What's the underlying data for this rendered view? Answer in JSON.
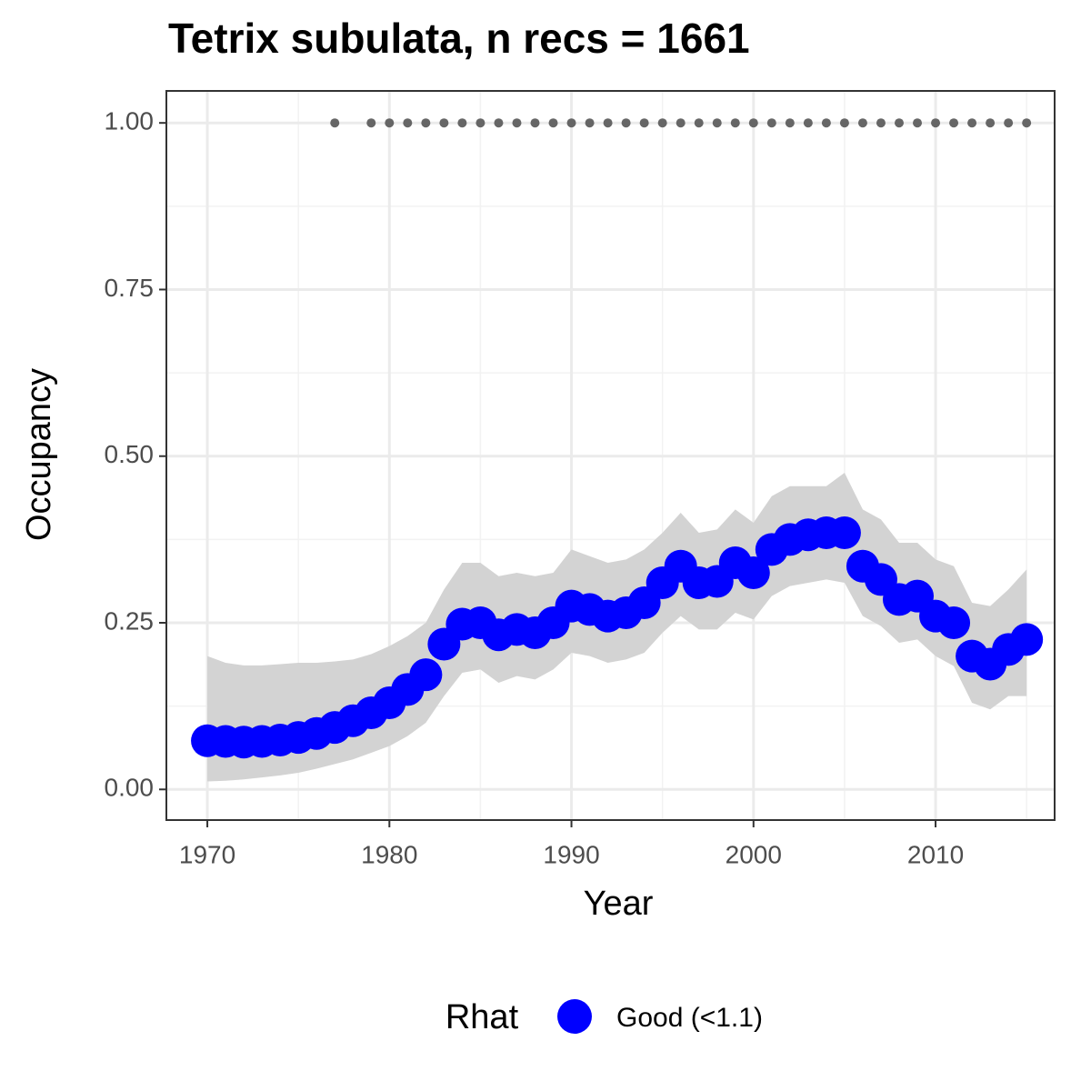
{
  "chart_data": {
    "type": "scatter",
    "title": "Tetrix subulata, n recs = 1661",
    "x_label": "Year",
    "y_label": "Occupancy",
    "legend_title": "Rhat",
    "x": [
      1970,
      1971,
      1972,
      1973,
      1974,
      1975,
      1976,
      1977,
      1978,
      1979,
      1980,
      1981,
      1982,
      1983,
      1984,
      1985,
      1986,
      1987,
      1988,
      1989,
      1990,
      1991,
      1992,
      1993,
      1994,
      1995,
      1996,
      1997,
      1998,
      1999,
      2000,
      2001,
      2002,
      2003,
      2004,
      2005,
      2006,
      2007,
      2008,
      2009,
      2010,
      2011,
      2012,
      2013,
      2014,
      2015
    ],
    "series": [
      {
        "name": "Good (<1.1)",
        "color": "#0000ff",
        "values": [
          0.073,
          0.072,
          0.071,
          0.072,
          0.074,
          0.078,
          0.084,
          0.093,
          0.103,
          0.115,
          0.13,
          0.15,
          0.172,
          0.218,
          0.248,
          0.25,
          0.232,
          0.24,
          0.235,
          0.25,
          0.275,
          0.27,
          0.26,
          0.265,
          0.28,
          0.31,
          0.335,
          0.31,
          0.312,
          0.34,
          0.325,
          0.36,
          0.375,
          0.382,
          0.385,
          0.385,
          0.335,
          0.315,
          0.285,
          0.29,
          0.26,
          0.25,
          0.2,
          0.188,
          0.21,
          0.225
        ]
      }
    ],
    "band": {
      "color": "#d3d3d3",
      "upper": [
        0.2,
        0.19,
        0.186,
        0.186,
        0.188,
        0.19,
        0.19,
        0.192,
        0.195,
        0.203,
        0.215,
        0.23,
        0.25,
        0.3,
        0.34,
        0.34,
        0.32,
        0.325,
        0.32,
        0.325,
        0.36,
        0.35,
        0.34,
        0.345,
        0.36,
        0.385,
        0.415,
        0.385,
        0.39,
        0.42,
        0.4,
        0.44,
        0.455,
        0.455,
        0.455,
        0.475,
        0.42,
        0.405,
        0.37,
        0.37,
        0.345,
        0.335,
        0.28,
        0.275,
        0.3,
        0.33
      ],
      "lower": [
        0.012,
        0.013,
        0.015,
        0.018,
        0.021,
        0.025,
        0.031,
        0.038,
        0.045,
        0.055,
        0.065,
        0.08,
        0.1,
        0.14,
        0.175,
        0.18,
        0.16,
        0.17,
        0.165,
        0.18,
        0.205,
        0.2,
        0.19,
        0.195,
        0.205,
        0.235,
        0.26,
        0.24,
        0.24,
        0.265,
        0.255,
        0.29,
        0.305,
        0.31,
        0.315,
        0.31,
        0.26,
        0.245,
        0.22,
        0.225,
        0.2,
        0.185,
        0.13,
        0.12,
        0.14,
        0.14
      ]
    },
    "points": {
      "color": "#666666",
      "x": [
        1977,
        1979,
        1980,
        1981,
        1982,
        1983,
        1984,
        1985,
        1986,
        1987,
        1988,
        1989,
        1990,
        1991,
        1992,
        1993,
        1994,
        1995,
        1996,
        1997,
        1998,
        1999,
        2000,
        2001,
        2002,
        2003,
        2004,
        2005,
        2006,
        2007,
        2008,
        2009,
        2010,
        2011,
        2012,
        2013,
        2014,
        2015
      ],
      "values": [
        1,
        1,
        1,
        1,
        1,
        1,
        1,
        1,
        1,
        1,
        1,
        1,
        1,
        1,
        1,
        1,
        1,
        1,
        1,
        1,
        1,
        1,
        1,
        1,
        1,
        1,
        1,
        1,
        1,
        1,
        1,
        1,
        1,
        1,
        1,
        1,
        1,
        1
      ]
    },
    "xlim": [
      1967.75,
      2016.54
    ],
    "ylim": [
      -0.046,
      1.048
    ],
    "xticks": [
      1970,
      1980,
      1990,
      2000,
      2010
    ],
    "yticks": [
      {
        "value": 0,
        "label": "0.00"
      },
      {
        "value": 0.25,
        "label": "0.25"
      },
      {
        "value": 0.5,
        "label": "0.50"
      },
      {
        "value": 0.75,
        "label": "0.75"
      },
      {
        "value": 1,
        "label": "1.00"
      }
    ],
    "x_minor_grid": [
      1975,
      1985,
      1995,
      2005,
      2015
    ],
    "y_minor_grid": [
      0.125,
      0.375,
      0.625,
      0.875
    ],
    "grid": true
  }
}
